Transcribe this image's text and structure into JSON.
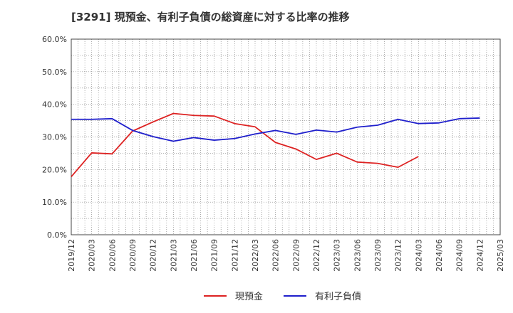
{
  "chart_data": {
    "type": "line",
    "title": "[3291]  現預金、有利子負債の総資産に対する比率の推移",
    "xlabel": "",
    "ylabel": "",
    "ylim": [
      0,
      60
    ],
    "y_ticks": [
      "0.0%",
      "10.0%",
      "20.0%",
      "30.0%",
      "40.0%",
      "50.0%",
      "60.0%"
    ],
    "y_tick_values": [
      0,
      10,
      20,
      30,
      40,
      50,
      60
    ],
    "categories": [
      "2019/12",
      "2020/03",
      "2020/06",
      "2020/09",
      "2020/12",
      "2021/03",
      "2021/06",
      "2021/09",
      "2021/12",
      "2022/03",
      "2022/06",
      "2022/09",
      "2022/12",
      "2023/03",
      "2023/06",
      "2023/09",
      "2023/12",
      "2024/03",
      "2024/06",
      "2024/09",
      "2024/12",
      "2025/03"
    ],
    "grid": true,
    "legend_position": "bottom",
    "series": [
      {
        "name": "現預金",
        "color": "#dd2222",
        "values": [
          17.8,
          25.1,
          24.8,
          31.8,
          34.6,
          37.2,
          36.6,
          36.4,
          34.1,
          33.1,
          28.3,
          26.3,
          23.1,
          25.0,
          22.3,
          21.9,
          20.7,
          24.0,
          null,
          null,
          null,
          null
        ]
      },
      {
        "name": "有利子負債",
        "color": "#1f1fcc",
        "values": [
          35.4,
          35.4,
          35.6,
          32.0,
          30.1,
          28.7,
          29.8,
          29.0,
          29.5,
          30.9,
          32.0,
          30.8,
          32.1,
          31.5,
          33.0,
          33.6,
          35.4,
          34.1,
          34.3,
          35.6,
          35.8,
          null
        ]
      }
    ]
  }
}
